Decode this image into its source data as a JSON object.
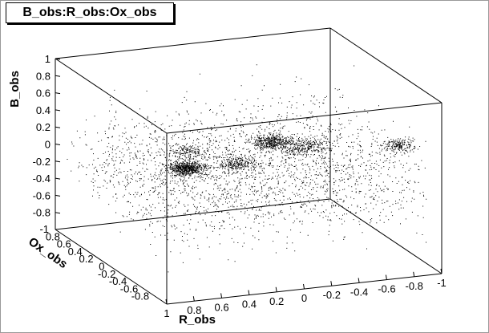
{
  "chart_data": {
    "type": "scatter",
    "title": "B_obs:R_obs:Ox_obs",
    "xlabel": "R_obs",
    "ylabel": "Ox_obs",
    "zlabel": "B_obs",
    "xlim": [
      -1,
      1
    ],
    "ylim": [
      -1,
      1
    ],
    "zlim": [
      -1,
      1
    ],
    "x_ticks": [
      "1",
      "0.8",
      "0.6",
      "0.4",
      "0.2",
      "0",
      "-0.2",
      "-0.4",
      "-0.6",
      "-0.8",
      "-1"
    ],
    "y_ticks": [
      "-1",
      "0.8",
      "0.6",
      "0.4",
      "0.2",
      "0",
      "-0.2",
      "-0.4",
      "-0.6",
      "-0.8"
    ],
    "z_ticks": [
      "1",
      "0.8",
      "0.6",
      "0.4",
      "0.2",
      "0",
      "-0.2",
      "-0.4",
      "-0.6",
      "-0.8"
    ],
    "series": [
      {
        "marker_color": "#000000",
        "clusters": [
          {
            "x": 0.45,
            "y": 0.0,
            "z": 0.05,
            "spread": 0.06,
            "count": 650
          },
          {
            "x": 0.0,
            "y": -0.4,
            "z": 0.45,
            "spread": 0.06,
            "count": 420
          },
          {
            "x": 0.45,
            "y": -0.9,
            "z": 0.5,
            "spread": 0.07,
            "count": 260
          },
          {
            "x": 0.85,
            "y": -1.0,
            "z": 0.75,
            "spread": 0.06,
            "count": 160
          },
          {
            "x": -0.4,
            "y": 0.0,
            "z": 0.15,
            "spread": 0.07,
            "count": 260
          },
          {
            "x": -0.85,
            "y": -0.6,
            "z": 0.35,
            "spread": 0.06,
            "count": 200
          }
        ],
        "background_count": 2600
      }
    ],
    "grid": false,
    "legend": "none"
  }
}
